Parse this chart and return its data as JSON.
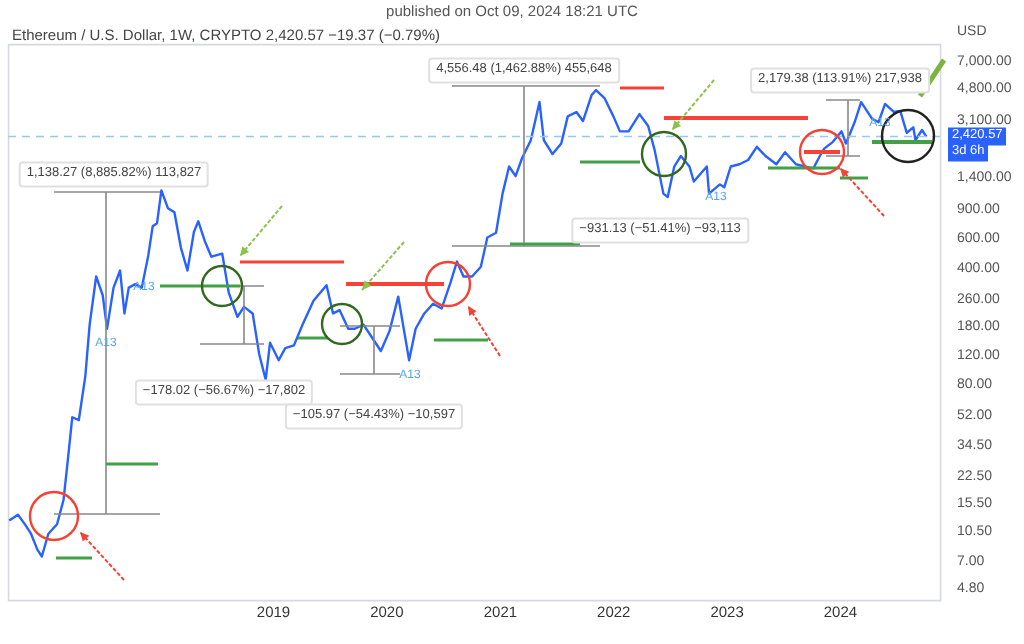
{
  "chart_data": {
    "type": "line",
    "title": "Ethereum / U.S. Dollar, 1W, CRYPTO 2,420.57 −19.37 (−0.79%)",
    "ylabel": "USD",
    "x": [
      "2016-09-05",
      "2016-10-03",
      "2016-10-24",
      "2016-11-14",
      "2016-12-05",
      "2016-12-19",
      "2017-01-09",
      "2017-02-06",
      "2017-02-27",
      "2017-03-13",
      "2017-03-27",
      "2017-04-17",
      "2017-05-08",
      "2017-05-22",
      "2017-06-12",
      "2017-07-03",
      "2017-07-17",
      "2017-08-07",
      "2017-08-28",
      "2017-09-11",
      "2017-09-25",
      "2017-10-16",
      "2017-11-06",
      "2017-11-27",
      "2017-12-11",
      "2017-12-25",
      "2018-01-08",
      "2018-01-29",
      "2018-02-19",
      "2018-03-12",
      "2018-04-02",
      "2018-04-23",
      "2018-05-07",
      "2018-05-28",
      "2018-06-18",
      "2018-07-23",
      "2018-08-13",
      "2018-09-10",
      "2018-10-01",
      "2018-10-29",
      "2018-11-19",
      "2018-12-10",
      "2018-12-24",
      "2019-01-21",
      "2019-02-11",
      "2019-03-11",
      "2019-04-08",
      "2019-05-13",
      "2019-06-24",
      "2019-07-15",
      "2019-08-05",
      "2019-09-02",
      "2019-09-23",
      "2019-10-21",
      "2019-11-18",
      "2019-12-16",
      "2020-01-13",
      "2020-02-10",
      "2020-03-16",
      "2020-04-06",
      "2020-05-04",
      "2020-06-01",
      "2020-06-29",
      "2020-07-27",
      "2020-08-17",
      "2020-09-07",
      "2020-10-05",
      "2020-11-02",
      "2020-11-23",
      "2020-12-21",
      "2021-01-11",
      "2021-02-01",
      "2021-02-22",
      "2021-03-15",
      "2021-04-12",
      "2021-05-10",
      "2021-05-24",
      "2021-06-21",
      "2021-07-19",
      "2021-08-09",
      "2021-09-06",
      "2021-09-27",
      "2021-10-25",
      "2021-11-08",
      "2021-12-06",
      "2022-01-03",
      "2022-01-24",
      "2022-02-21",
      "2022-03-28",
      "2022-04-25",
      "2022-05-16",
      "2022-06-13",
      "2022-06-27",
      "2022-07-18",
      "2022-08-08",
      "2022-09-05",
      "2022-09-19",
      "2022-10-31",
      "2022-11-07",
      "2022-12-12",
      "2022-12-26",
      "2023-01-16",
      "2023-02-13",
      "2023-03-13",
      "2023-04-10",
      "2023-05-08",
      "2023-06-12",
      "2023-07-10",
      "2023-08-14",
      "2023-09-11",
      "2023-10-09",
      "2023-10-30",
      "2023-11-13",
      "2023-12-11",
      "2024-01-08",
      "2024-01-22",
      "2024-02-19",
      "2024-03-11",
      "2024-04-15",
      "2024-05-06",
      "2024-05-27",
      "2024-06-24",
      "2024-07-15",
      "2024-08-05",
      "2024-08-26",
      "2024-09-02",
      "2024-09-23",
      "2024-10-07"
    ],
    "series": [
      {
        "color": "#2962ff",
        "values": [
          12,
          13,
          11.5,
          10,
          8,
          7.3,
          10,
          11.4,
          16,
          28,
          50,
          48,
          88,
          180,
          350,
          270,
          170,
          300,
          380,
          210,
          300,
          315,
          300,
          470,
          700,
          730,
          1150,
          900,
          850,
          520,
          380,
          650,
          750,
          570,
          460,
          480,
          280,
          200,
          230,
          210,
          120,
          84,
          140,
          110,
          130,
          135,
          180,
          250,
          310,
          210,
          220,
          170,
          170,
          180,
          150,
          125,
          165,
          265,
          110,
          170,
          210,
          240,
          225,
          320,
          430,
          350,
          350,
          400,
          600,
          640,
          1100,
          1600,
          1400,
          1800,
          2300,
          3900,
          2300,
          1900,
          2200,
          3200,
          3400,
          3000,
          4300,
          4600,
          4100,
          3200,
          2600,
          2600,
          3300,
          2800,
          2000,
          1100,
          1050,
          1600,
          1850,
          1600,
          1300,
          1600,
          1100,
          1250,
          1200,
          1600,
          1650,
          1750,
          2100,
          1850,
          1650,
          1950,
          1650,
          1600,
          1560,
          1850,
          2050,
          2250,
          2600,
          2200,
          2950,
          3900,
          3100,
          2950,
          3800,
          3400,
          3450,
          2550,
          2750,
          2300,
          2650,
          2420.57
        ]
      }
    ],
    "xlim": [
      "2016-09-01",
      "2024-11-20"
    ],
    "xticks": [
      "2019",
      "2020",
      "2021",
      "2022",
      "2023",
      "2024"
    ],
    "log": true,
    "ylim": [
      4,
      8700
    ],
    "yticks": [
      {
        "value": 4.8,
        "label": "4.80"
      },
      {
        "value": 7,
        "label": "7.00"
      },
      {
        "value": 10.5,
        "label": "10.50"
      },
      {
        "value": 15.5,
        "label": "15.50"
      },
      {
        "value": 22.5,
        "label": "22.50"
      },
      {
        "value": 34.5,
        "label": "34.50"
      },
      {
        "value": 52,
        "label": "52.00"
      },
      {
        "value": 80,
        "label": "80.00"
      },
      {
        "value": 120,
        "label": "120.00"
      },
      {
        "value": 180,
        "label": "180.00"
      },
      {
        "value": 260,
        "label": "260.00"
      },
      {
        "value": 400,
        "label": "400.00"
      },
      {
        "value": 600,
        "label": "600.00"
      },
      {
        "value": 900,
        "label": "900.00"
      },
      {
        "value": 1400,
        "label": "1,400.00"
      },
      {
        "value": 3100,
        "label": "3,100.00"
      },
      {
        "value": 4800,
        "label": "4,800.00"
      },
      {
        "value": 7000,
        "label": "7,000.00"
      }
    ],
    "grid": false,
    "line_style": "solid",
    "marker": "none",
    "ref_lines": [
      {
        "axis": "y",
        "value": 2420.57,
        "color": "#90caf9",
        "line_style": "dashed"
      }
    ],
    "annotations": [
      "published on Oct 09, 2024 18:21 UTC",
      "1,138.27 (8,885.82%) 113,827",
      "4,556.48 (1,462.88%) 455,648",
      "2,179.38 (113.91%) 217,938",
      "−931.13 (−51.41%) −93,113",
      "−178.02 (−56.67%) −17,802",
      "−105.97 (−54.43%) −10,597",
      "A13",
      "A13",
      "A13",
      "A13",
      "A13",
      "2,420.57",
      "3d 6h"
    ]
  }
}
